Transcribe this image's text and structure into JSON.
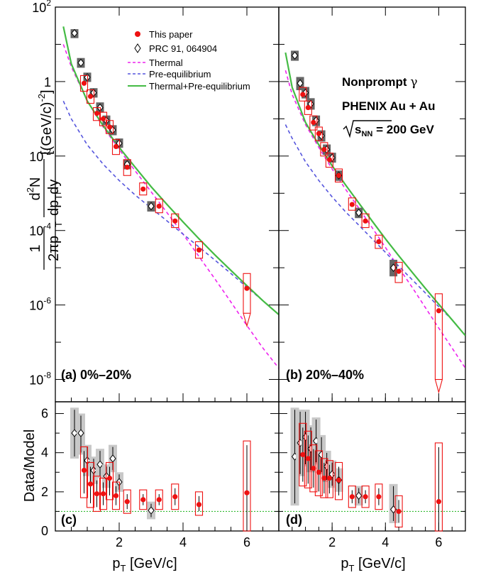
{
  "chart_data": {
    "type": "scatter",
    "spectrum_ylabel_tail": "[(GeV/c)",
    "spectrum_ylabel_exp": "-2",
    "spectrum_ylabel_close": "]",
    "ratio_ylabel": "Data/Model",
    "xlabel_main": "p",
    "xlabel_sub": "T",
    "xlabel_units": "[GeV/c]",
    "x_range": [
      0,
      7
    ],
    "spectrum_ylim_log10": [
      -8.6,
      2
    ],
    "ratio_ylim": [
      0,
      6.6
    ],
    "x_ticks": [
      2,
      4,
      6
    ],
    "y_ticks_log": [
      {
        "base": "10",
        "exp": "2",
        "pow": 2
      },
      {
        "base": "1",
        "exp": "",
        "pow": 0
      },
      {
        "base": "10",
        "exp": "-2",
        "pow": -2
      },
      {
        "base": "10",
        "exp": "-4",
        "pow": -4
      },
      {
        "base": "10",
        "exp": "-6",
        "pow": -6
      },
      {
        "base": "10",
        "exp": "-8",
        "pow": -8
      }
    ],
    "ratio_ticks": [
      "0",
      "2",
      "4",
      "6"
    ],
    "legend": {
      "this_paper": "This paper",
      "prc": "PRC 91, 064904",
      "thermal": "Thermal",
      "preeq": "Pre-equilibrium",
      "sum": "Thermal+Pre-equilibrium"
    },
    "colors": {
      "this_paper": "#ee1111",
      "prc_box": "#666666",
      "thermal": "#ee22ee",
      "preeq": "#5555dd",
      "sum": "#44bb44",
      "ratio_line": "#33bb33"
    },
    "annotation": {
      "line1_main": "Nonprompt ",
      "line1_symbol": "γ",
      "line2": "PHENIX Au + Au",
      "line3_s": "s",
      "line3_sub": "NN",
      "line3_val": " = 200 GeV"
    },
    "panels": [
      {
        "label": "(a) 0%–20%",
        "ratio_label": "(c)",
        "this_paper": [
          {
            "x": 0.9,
            "y": 0.9,
            "lo": 0.55,
            "hi": 1.45
          },
          {
            "x": 1.1,
            "y": 0.4,
            "lo": 0.26,
            "hi": 0.6
          },
          {
            "x": 1.3,
            "y": 0.14,
            "lo": 0.09,
            "hi": 0.2
          },
          {
            "x": 1.5,
            "y": 0.1,
            "lo": 0.065,
            "hi": 0.15
          },
          {
            "x": 1.7,
            "y": 0.06,
            "lo": 0.04,
            "hi": 0.09
          },
          {
            "x": 1.9,
            "y": 0.018,
            "lo": 0.011,
            "hi": 0.028
          },
          {
            "x": 2.25,
            "y": 0.005,
            "lo": 0.003,
            "hi": 0.008
          },
          {
            "x": 2.75,
            "y": 0.0013,
            "lo": 0.0009,
            "hi": 0.0019
          },
          {
            "x": 3.25,
            "y": 0.00045,
            "lo": 0.0003,
            "hi": 0.0007
          },
          {
            "x": 3.75,
            "y": 0.00018,
            "lo": 0.00012,
            "hi": 0.00028
          },
          {
            "x": 4.5,
            "y": 3e-05,
            "lo": 1.8e-05,
            "hi": 5e-05
          },
          {
            "x": 6.0,
            "y": 2.8e-06,
            "lo": 6e-07,
            "hi": 7e-06,
            "arrow": true
          }
        ],
        "prc": [
          {
            "x": 0.6,
            "y": 20,
            "lo": 15,
            "hi": 25
          },
          {
            "x": 0.8,
            "y": 3.2,
            "lo": 2.4,
            "hi": 4.2
          },
          {
            "x": 1.0,
            "y": 1.3,
            "lo": 1.0,
            "hi": 1.7
          },
          {
            "x": 1.2,
            "y": 0.5,
            "lo": 0.38,
            "hi": 0.65
          },
          {
            "x": 1.4,
            "y": 0.2,
            "lo": 0.15,
            "hi": 0.27
          },
          {
            "x": 1.6,
            "y": 0.09,
            "lo": 0.07,
            "hi": 0.12
          },
          {
            "x": 1.8,
            "y": 0.05,
            "lo": 0.037,
            "hi": 0.066
          },
          {
            "x": 2.0,
            "y": 0.022,
            "lo": 0.017,
            "hi": 0.029
          },
          {
            "x": 2.25,
            "y": 0.006,
            "lo": 0.0045,
            "hi": 0.008
          },
          {
            "x": 3.0,
            "y": 0.00045,
            "lo": 0.00033,
            "hi": 0.0006
          }
        ],
        "ratio_this_paper": [
          {
            "x": 0.9,
            "y": 3.1,
            "lo": 1.7,
            "hi": 4.3
          },
          {
            "x": 1.1,
            "y": 2.4,
            "lo": 1.2,
            "hi": 3.5
          },
          {
            "x": 1.3,
            "y": 1.9,
            "lo": 1.0,
            "hi": 2.8
          },
          {
            "x": 1.5,
            "y": 1.9,
            "lo": 1.1,
            "hi": 2.7
          },
          {
            "x": 1.7,
            "y": 2.7,
            "lo": 1.6,
            "hi": 3.5
          },
          {
            "x": 1.9,
            "y": 1.8,
            "lo": 1.1,
            "hi": 2.5
          },
          {
            "x": 2.25,
            "y": 1.5,
            "lo": 0.9,
            "hi": 2.1
          },
          {
            "x": 2.75,
            "y": 1.6,
            "lo": 1.1,
            "hi": 2.1
          },
          {
            "x": 3.25,
            "y": 1.6,
            "lo": 1.1,
            "hi": 2.1
          },
          {
            "x": 3.75,
            "y": 1.75,
            "lo": 1.1,
            "hi": 2.4
          },
          {
            "x": 4.5,
            "y": 1.35,
            "lo": 0.8,
            "hi": 2.0
          },
          {
            "x": 6.0,
            "y": 1.95,
            "lo": 0.0,
            "hi": 4.6
          }
        ],
        "ratio_prc": [
          {
            "x": 0.6,
            "y": 5.0,
            "lo": 3.7,
            "hi": 6.3
          },
          {
            "x": 0.8,
            "y": 5.0,
            "lo": 3.9,
            "hi": 6.0
          },
          {
            "x": 1.0,
            "y": 3.6,
            "lo": 2.8,
            "hi": 4.4
          },
          {
            "x": 1.2,
            "y": 3.1,
            "lo": 2.4,
            "hi": 3.8
          },
          {
            "x": 1.4,
            "y": 3.4,
            "lo": 2.7,
            "hi": 4.2
          },
          {
            "x": 1.6,
            "y": 2.8,
            "lo": 2.2,
            "hi": 3.4
          },
          {
            "x": 1.8,
            "y": 3.7,
            "lo": 3.0,
            "hi": 4.4
          },
          {
            "x": 2.0,
            "y": 2.5,
            "lo": 2.0,
            "hi": 3.0
          },
          {
            "x": 3.0,
            "y": 1.05,
            "lo": 0.6,
            "hi": 1.5
          }
        ],
        "thermal": {
          "x": [
            0.25,
            0.5,
            1.0,
            1.5,
            2.0,
            2.5,
            3.0,
            3.5,
            4.0,
            4.5,
            5.0,
            5.5,
            6.0,
            6.5,
            7.0
          ],
          "y": [
            10,
            2.5,
            0.3,
            0.06,
            0.015,
            0.004,
            0.0011,
            0.0003,
            8e-05,
            2e-05,
            5e-06,
            1.2e-06,
            2.8e-07,
            7e-08,
            2e-08
          ]
        },
        "preeq": {
          "x": [
            0.25,
            0.5,
            1.0,
            1.5,
            2.0,
            2.5,
            3.0,
            3.5,
            4.0,
            4.5,
            5.0,
            5.5,
            6.0,
            6.5,
            7.0
          ],
          "y": [
            0.3,
            0.1,
            0.02,
            0.006,
            0.0022,
            0.0009,
            0.0004,
            0.00018,
            8e-05,
            3.6e-05,
            1.6e-05,
            7e-06,
            3e-06,
            1.3e-06,
            5.5e-07
          ]
        },
        "sum": {
          "x": [
            0.25,
            0.5,
            1.0,
            1.5,
            2.0,
            2.5,
            3.0,
            3.5,
            4.0,
            4.5,
            5.0,
            5.5,
            6.0,
            6.5,
            7.0
          ],
          "y": [
            30,
            3.0,
            0.3,
            0.065,
            0.017,
            0.005,
            0.0015,
            0.0005,
            0.00017,
            6e-05,
            2.2e-05,
            8.5e-06,
            3.3e-06,
            1.3e-06,
            5.5e-07
          ]
        }
      },
      {
        "label": "(b) 20%–40%",
        "ratio_label": "(d)",
        "this_paper": [
          {
            "x": 0.9,
            "y": 0.45,
            "lo": 0.3,
            "hi": 0.7
          },
          {
            "x": 1.1,
            "y": 0.2,
            "lo": 0.13,
            "hi": 0.3
          },
          {
            "x": 1.3,
            "y": 0.08,
            "lo": 0.05,
            "hi": 0.12
          },
          {
            "x": 1.5,
            "y": 0.04,
            "lo": 0.026,
            "hi": 0.06
          },
          {
            "x": 1.7,
            "y": 0.015,
            "lo": 0.01,
            "hi": 0.023
          },
          {
            "x": 1.9,
            "y": 0.008,
            "lo": 0.005,
            "hi": 0.012
          },
          {
            "x": 2.25,
            "y": 0.003,
            "lo": 0.002,
            "hi": 0.0045
          },
          {
            "x": 2.75,
            "y": 0.0005,
            "lo": 0.00035,
            "hi": 0.00075
          },
          {
            "x": 3.25,
            "y": 0.00018,
            "lo": 0.00012,
            "hi": 0.00028
          },
          {
            "x": 3.75,
            "y": 5e-05,
            "lo": 3.3e-05,
            "hi": 7.5e-05
          },
          {
            "x": 4.5,
            "y": 8e-06,
            "lo": 4e-06,
            "hi": 1.4e-05
          },
          {
            "x": 6.0,
            "y": 7e-07,
            "lo": 1e-08,
            "hi": 2e-06,
            "arrow": true
          }
        ],
        "prc": [
          {
            "x": 0.6,
            "y": 5.0,
            "lo": 3.7,
            "hi": 6.6
          },
          {
            "x": 0.8,
            "y": 0.9,
            "lo": 0.6,
            "hi": 1.3
          },
          {
            "x": 1.0,
            "y": 0.5,
            "lo": 0.36,
            "hi": 0.7
          },
          {
            "x": 1.2,
            "y": 0.25,
            "lo": 0.18,
            "hi": 0.35
          },
          {
            "x": 1.4,
            "y": 0.09,
            "lo": 0.065,
            "hi": 0.12
          },
          {
            "x": 1.6,
            "y": 0.035,
            "lo": 0.025,
            "hi": 0.048
          },
          {
            "x": 1.8,
            "y": 0.015,
            "lo": 0.011,
            "hi": 0.02
          },
          {
            "x": 2.0,
            "y": 0.009,
            "lo": 0.0068,
            "hi": 0.012
          },
          {
            "x": 2.25,
            "y": 0.003,
            "lo": 0.0022,
            "hi": 0.004
          },
          {
            "x": 3.0,
            "y": 0.0003,
            "lo": 0.00022,
            "hi": 0.0004
          },
          {
            "x": 4.3,
            "y": 1e-05,
            "lo": 6e-06,
            "hi": 1.6e-05
          }
        ],
        "ratio_this_paper": [
          {
            "x": 0.9,
            "y": 3.9,
            "lo": 2.3,
            "hi": 5.5
          },
          {
            "x": 1.1,
            "y": 3.7,
            "lo": 2.2,
            "hi": 5.1
          },
          {
            "x": 1.3,
            "y": 3.2,
            "lo": 2.0,
            "hi": 4.4
          },
          {
            "x": 1.5,
            "y": 3.0,
            "lo": 1.8,
            "hi": 4.1
          },
          {
            "x": 1.7,
            "y": 2.7,
            "lo": 1.7,
            "hi": 3.7
          },
          {
            "x": 1.9,
            "y": 2.7,
            "lo": 1.7,
            "hi": 3.6
          },
          {
            "x": 2.25,
            "y": 2.6,
            "lo": 1.6,
            "hi": 3.5
          },
          {
            "x": 2.75,
            "y": 1.75,
            "lo": 1.2,
            "hi": 2.3
          },
          {
            "x": 3.25,
            "y": 1.75,
            "lo": 1.2,
            "hi": 2.3
          },
          {
            "x": 3.75,
            "y": 1.75,
            "lo": 1.1,
            "hi": 2.4
          },
          {
            "x": 4.5,
            "y": 1.0,
            "lo": 0.2,
            "hi": 1.8
          },
          {
            "x": 6.0,
            "y": 1.5,
            "lo": 0.0,
            "hi": 4.5
          }
        ],
        "ratio_prc": [
          {
            "x": 0.6,
            "y": 3.8,
            "lo": 1.3,
            "hi": 6.3
          },
          {
            "x": 0.8,
            "y": 4.5,
            "lo": 2.8,
            "hi": 6.2
          },
          {
            "x": 1.0,
            "y": 4.8,
            "lo": 3.3,
            "hi": 6.2
          },
          {
            "x": 1.2,
            "y": 4.2,
            "lo": 3.0,
            "hi": 5.4
          },
          {
            "x": 1.4,
            "y": 4.6,
            "lo": 3.4,
            "hi": 5.8
          },
          {
            "x": 1.6,
            "y": 3.9,
            "lo": 2.9,
            "hi": 4.9
          },
          {
            "x": 1.8,
            "y": 3.3,
            "lo": 2.5,
            "hi": 4.1
          },
          {
            "x": 2.0,
            "y": 2.9,
            "lo": 2.2,
            "hi": 3.6
          },
          {
            "x": 2.25,
            "y": 2.6,
            "lo": 2.0,
            "hi": 3.2
          },
          {
            "x": 3.0,
            "y": 1.8,
            "lo": 1.3,
            "hi": 2.3
          },
          {
            "x": 4.3,
            "y": 1.1,
            "lo": 0.4,
            "hi": 2.4
          }
        ],
        "thermal": {
          "x": [
            0.25,
            0.5,
            1.0,
            1.5,
            2.0,
            2.5,
            3.0,
            3.5,
            4.0,
            4.5,
            5.0,
            5.5,
            6.0,
            6.5,
            7.0
          ],
          "y": [
            2.0,
            0.45,
            0.07,
            0.017,
            0.0045,
            0.0013,
            0.0004,
            0.00012,
            3.5e-05,
            1e-05,
            3e-06,
            8.5e-07,
            2.4e-07,
            7e-08,
            2e-08
          ]
        },
        "preeq": {
          "x": [
            0.25,
            0.5,
            1.0,
            1.5,
            2.0,
            2.5,
            3.0,
            3.5,
            4.0,
            4.5,
            5.0,
            5.5,
            6.0,
            6.5,
            7.0
          ],
          "y": [
            0.07,
            0.03,
            0.007,
            0.0022,
            0.0008,
            0.00032,
            0.00014,
            6e-05,
            2.6e-05,
            1.1e-05,
            4.8e-06,
            2.1e-06,
            9e-07,
            4e-07,
            1.5e-07
          ]
        },
        "sum": {
          "x": [
            0.25,
            0.5,
            1.0,
            1.5,
            2.0,
            2.5,
            3.0,
            3.5,
            4.0,
            4.5,
            5.0,
            5.5,
            6.0,
            6.5,
            7.0
          ],
          "y": [
            6.0,
            0.7,
            0.08,
            0.02,
            0.0055,
            0.0017,
            0.00055,
            0.00018,
            6e-05,
            2.1e-05,
            7.6e-06,
            2.8e-06,
            1.05e-06,
            4e-07,
            1.5e-07
          ]
        }
      }
    ]
  }
}
